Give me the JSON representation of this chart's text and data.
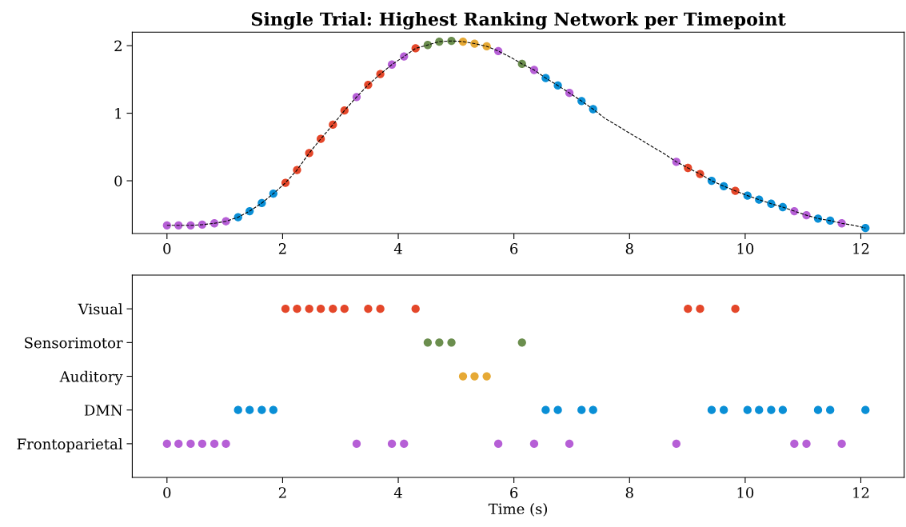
{
  "chart_data": [
    {
      "type": "scatter",
      "title": "Single Trial: Highest Ranking Network per Timepoint",
      "xlim": [
        -0.6,
        12.75
      ],
      "xticks": [
        0,
        2,
        4,
        6,
        8,
        10,
        12
      ],
      "ylim": [
        -0.78,
        2.2
      ],
      "yticks": [
        0,
        1,
        2
      ],
      "grid": false,
      "marker": "circle",
      "series": [
        {
          "type": "line",
          "color": "#000000",
          "line_style": "dashed",
          "marker": "none",
          "x": [
            0,
            0.2,
            0.41,
            0.61,
            0.82,
            1.02,
            1.23,
            1.43,
            1.64,
            1.84,
            2.05,
            2.25,
            2.46,
            2.66,
            2.87,
            3.07,
            3.28,
            3.48,
            3.69,
            3.89,
            4.1,
            4.3,
            4.51,
            4.71,
            4.92,
            5.12,
            5.32,
            5.53,
            5.73,
            5.94,
            6.14,
            6.35,
            6.55,
            6.76,
            6.96,
            7.17,
            7.37,
            7.58,
            7.78,
            7.99,
            8.19,
            8.4,
            8.6,
            8.81,
            9.01,
            9.22,
            9.42,
            9.63,
            9.83,
            10.04,
            10.24,
            10.45,
            10.65,
            10.85,
            11.06,
            11.26,
            11.47,
            11.67,
            11.88,
            12.08
          ],
          "values": [
            -0.66,
            -0.66,
            -0.66,
            -0.65,
            -0.63,
            -0.6,
            -0.54,
            -0.45,
            -0.33,
            -0.19,
            -0.03,
            0.16,
            0.41,
            0.62,
            0.83,
            1.04,
            1.24,
            1.42,
            1.58,
            1.72,
            1.84,
            1.96,
            2.01,
            2.06,
            2.07,
            2.06,
            2.03,
            1.99,
            1.92,
            1.83,
            1.73,
            1.64,
            1.52,
            1.41,
            1.3,
            1.18,
            1.06,
            0.92,
            0.82,
            0.71,
            0.61,
            0.5,
            0.4,
            0.28,
            0.19,
            0.1,
            0.0,
            -0.08,
            -0.15,
            -0.22,
            -0.28,
            -0.34,
            -0.39,
            -0.45,
            -0.51,
            -0.56,
            -0.59,
            -0.63,
            -0.66,
            -0.7
          ]
        },
        {
          "color": "#e4472a",
          "x": [
            2.05,
            2.25,
            2.46,
            2.66,
            2.87,
            3.07,
            3.48,
            3.69,
            4.3,
            9.01,
            9.22,
            9.83
          ],
          "values": [
            -0.03,
            0.16,
            0.41,
            0.62,
            0.83,
            1.04,
            1.42,
            1.58,
            1.96,
            0.19,
            0.1,
            -0.15
          ]
        },
        {
          "color": "#6b8e4e",
          "x": [
            4.51,
            4.71,
            4.92,
            6.14
          ],
          "values": [
            2.01,
            2.06,
            2.07,
            1.73
          ]
        },
        {
          "color": "#e6a935",
          "x": [
            5.12,
            5.32,
            5.53
          ],
          "values": [
            2.06,
            2.03,
            1.99
          ]
        },
        {
          "color": "#0a8fd6",
          "x": [
            1.23,
            1.43,
            1.64,
            1.84,
            6.55,
            6.76,
            7.17,
            7.37,
            9.42,
            9.63,
            10.04,
            10.24,
            10.45,
            10.65,
            11.26,
            11.47,
            12.08
          ],
          "values": [
            -0.54,
            -0.45,
            -0.33,
            -0.19,
            1.52,
            1.41,
            1.18,
            1.06,
            0.0,
            -0.08,
            -0.22,
            -0.28,
            -0.34,
            -0.39,
            -0.56,
            -0.59,
            -0.7
          ]
        },
        {
          "color": "#b65fd6",
          "x": [
            0,
            0.2,
            0.41,
            0.61,
            0.82,
            1.02,
            3.28,
            3.89,
            4.1,
            5.73,
            6.35,
            6.96,
            8.81,
            10.85,
            11.06,
            11.67
          ],
          "values": [
            -0.66,
            -0.66,
            -0.66,
            -0.65,
            -0.63,
            -0.6,
            1.24,
            1.72,
            1.84,
            1.92,
            1.64,
            1.3,
            0.28,
            -0.45,
            -0.51,
            -0.63
          ]
        }
      ]
    },
    {
      "type": "scatter",
      "orientation": "horizontal",
      "xlabel": "Time (s)",
      "xlim": [
        -0.6,
        12.75
      ],
      "xticks": [
        0,
        2,
        4,
        6,
        8,
        10,
        12
      ],
      "grid": false,
      "marker": "circle",
      "categories": [
        "Visual",
        "Sensorimotor",
        "Auditory",
        "DMN",
        "Frontoparietal"
      ],
      "series": [
        {
          "colors": [
            "#e4472a",
            "#6b8e4e",
            "#e6a935",
            "#0a8fd6",
            "#b65fd6"
          ],
          "values": [
            2.05,
            4.51,
            5.12,
            1.23,
            0
          ]
        },
        {
          "colors": [
            "#e4472a",
            "#6b8e4e",
            "#e6a935",
            "#0a8fd6",
            "#b65fd6"
          ],
          "values": [
            2.25,
            4.71,
            5.32,
            1.43,
            0.2
          ]
        },
        {
          "colors": [
            "#e4472a",
            "#6b8e4e",
            "#e6a935",
            "#0a8fd6",
            "#b65fd6"
          ],
          "values": [
            2.46,
            4.92,
            5.53,
            1.64,
            0.41
          ]
        },
        {
          "colors": [
            "#e4472a",
            "#6b8e4e",
            "#e6a935",
            "#0a8fd6",
            "#b65fd6"
          ],
          "values": [
            2.66,
            6.14,
            null,
            1.84,
            0.61
          ]
        },
        {
          "colors": [
            "#e4472a",
            "#6b8e4e",
            "#e6a935",
            "#0a8fd6",
            "#b65fd6"
          ],
          "values": [
            2.87,
            null,
            null,
            6.55,
            0.82
          ]
        },
        {
          "colors": [
            "#e4472a",
            "#6b8e4e",
            "#e6a935",
            "#0a8fd6",
            "#b65fd6"
          ],
          "values": [
            3.07,
            null,
            null,
            6.76,
            1.02
          ]
        },
        {
          "colors": [
            "#e4472a",
            "#6b8e4e",
            "#e6a935",
            "#0a8fd6",
            "#b65fd6"
          ],
          "values": [
            3.48,
            null,
            null,
            7.17,
            3.28
          ]
        },
        {
          "colors": [
            "#e4472a",
            "#6b8e4e",
            "#e6a935",
            "#0a8fd6",
            "#b65fd6"
          ],
          "values": [
            3.69,
            null,
            null,
            7.37,
            3.89
          ]
        },
        {
          "colors": [
            "#e4472a",
            "#6b8e4e",
            "#e6a935",
            "#0a8fd6",
            "#b65fd6"
          ],
          "values": [
            4.3,
            null,
            null,
            9.42,
            4.1
          ]
        },
        {
          "colors": [
            "#e4472a",
            "#6b8e4e",
            "#e6a935",
            "#0a8fd6",
            "#b65fd6"
          ],
          "values": [
            9.01,
            null,
            null,
            9.63,
            5.73
          ]
        },
        {
          "colors": [
            "#e4472a",
            "#6b8e4e",
            "#e6a935",
            "#0a8fd6",
            "#b65fd6"
          ],
          "values": [
            9.22,
            null,
            null,
            10.04,
            6.35
          ]
        },
        {
          "colors": [
            "#e4472a",
            "#6b8e4e",
            "#e6a935",
            "#0a8fd6",
            "#b65fd6"
          ],
          "values": [
            9.83,
            null,
            null,
            10.24,
            6.96
          ]
        },
        {
          "colors": [
            "#e4472a",
            "#6b8e4e",
            "#e6a935",
            "#0a8fd6",
            "#b65fd6"
          ],
          "values": [
            null,
            null,
            null,
            10.45,
            8.81
          ]
        },
        {
          "colors": [
            "#e4472a",
            "#6b8e4e",
            "#e6a935",
            "#0a8fd6",
            "#b65fd6"
          ],
          "values": [
            null,
            null,
            null,
            10.65,
            10.85
          ]
        },
        {
          "colors": [
            "#e4472a",
            "#6b8e4e",
            "#e6a935",
            "#0a8fd6",
            "#b65fd6"
          ],
          "values": [
            null,
            null,
            null,
            11.26,
            11.06
          ]
        },
        {
          "colors": [
            "#e4472a",
            "#6b8e4e",
            "#e6a935",
            "#0a8fd6",
            "#b65fd6"
          ],
          "values": [
            null,
            null,
            null,
            11.47,
            11.67
          ]
        },
        {
          "colors": [
            "#e4472a",
            "#6b8e4e",
            "#e6a935",
            "#0a8fd6",
            "#b65fd6"
          ],
          "values": [
            null,
            null,
            null,
            12.08,
            null
          ]
        }
      ]
    }
  ]
}
